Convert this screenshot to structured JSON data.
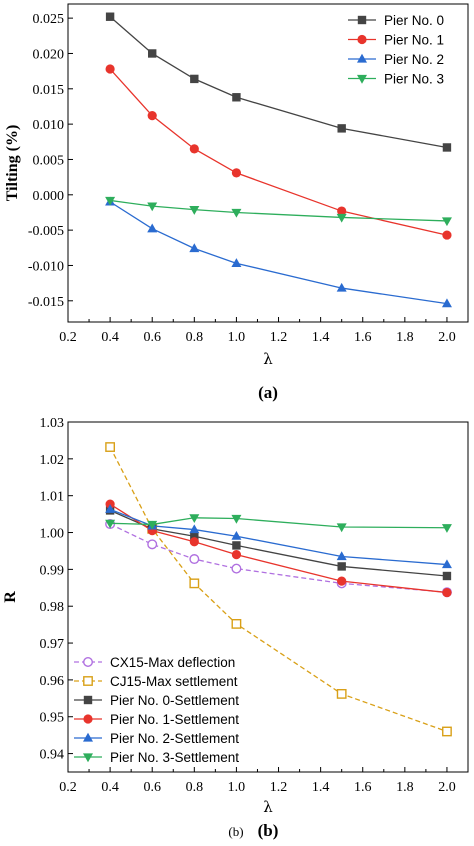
{
  "chart_data": [
    {
      "type": "line",
      "caption": "(a)",
      "xlabel": "λ",
      "ylabel": "Tilting (%)",
      "xlim": [
        0.2,
        2.1
      ],
      "ylim": [
        -0.018,
        0.027
      ],
      "xticks": [
        "0.2",
        "0.4",
        "0.6",
        "0.8",
        "1.0",
        "1.2",
        "1.4",
        "1.6",
        "1.8",
        "2.0"
      ],
      "yticks": [
        "0.025",
        "0.020",
        "0.015",
        "0.010",
        "0.005",
        "0.000",
        "-0.005",
        "-0.010",
        "-0.015"
      ],
      "x": [
        0.4,
        0.6,
        0.8,
        1.0,
        1.5,
        2.0
      ],
      "legend_position": "top-right",
      "series": [
        {
          "name": "Pier No. 0",
          "color": "#444444",
          "marker": "square",
          "values": [
            0.0252,
            0.02,
            0.0164,
            0.0138,
            0.0094,
            0.0067
          ]
        },
        {
          "name": "Pier No. 1",
          "color": "#e8342c",
          "marker": "circle",
          "values": [
            0.0178,
            0.0112,
            0.0065,
            0.0031,
            -0.0023,
            -0.0057
          ]
        },
        {
          "name": "Pier No. 2",
          "color": "#2a6bd0",
          "marker": "triangle-up",
          "values": [
            -0.001,
            -0.0048,
            -0.0076,
            -0.0097,
            -0.0132,
            -0.0154
          ]
        },
        {
          "name": "Pier No. 3",
          "color": "#2eae5c",
          "marker": "triangle-down",
          "values": [
            -0.0008,
            -0.0016,
            -0.0021,
            -0.0025,
            -0.0032,
            -0.0037
          ]
        }
      ]
    },
    {
      "type": "line",
      "caption": "(b)",
      "caption_small": "(b)",
      "xlabel": "λ",
      "ylabel": "R",
      "xlim": [
        0.2,
        2.1
      ],
      "ylim": [
        0.935,
        1.03
      ],
      "xticks": [
        "0.2",
        "0.4",
        "0.6",
        "0.8",
        "1.0",
        "1.2",
        "1.4",
        "1.6",
        "1.8",
        "2.0"
      ],
      "yticks": [
        "1.03",
        "1.02",
        "1.01",
        "1.00",
        "0.99",
        "0.98",
        "0.97",
        "0.96",
        "0.95",
        "0.94"
      ],
      "x": [
        0.4,
        0.6,
        0.8,
        1.0,
        1.5,
        2.0
      ],
      "legend_position": "bottom-left",
      "series": [
        {
          "name": "CX15-Max deflection",
          "color": "#b070e0",
          "marker": "circle-open",
          "dashed": true,
          "values": [
            1.0023,
            0.9968,
            0.9928,
            0.9902,
            0.9862,
            0.9838
          ]
        },
        {
          "name": "CJ15-Max settlement",
          "color": "#d9a017",
          "marker": "square-open",
          "dashed": true,
          "values": [
            1.0232,
            1.001,
            0.9862,
            0.9752,
            0.9562,
            0.946
          ]
        },
        {
          "name": "Pier No. 0-Settlement",
          "color": "#444444",
          "marker": "square",
          "values": [
            1.006,
            1.001,
            0.999,
            0.9965,
            0.9908,
            0.9882
          ]
        },
        {
          "name": "Pier No. 1-Settlement",
          "color": "#e8342c",
          "marker": "circle",
          "values": [
            1.0077,
            1.0005,
            0.9975,
            0.994,
            0.9868,
            0.9837
          ]
        },
        {
          "name": "Pier No. 2-Settlement",
          "color": "#2a6bd0",
          "marker": "triangle-up",
          "values": [
            1.0063,
            1.0018,
            1.0008,
            0.999,
            0.9935,
            0.9913
          ]
        },
        {
          "name": "Pier No. 3-Settlement",
          "color": "#2eae5c",
          "marker": "triangle-down",
          "values": [
            1.0025,
            1.0022,
            1.004,
            1.0038,
            1.0015,
            1.0013
          ]
        }
      ]
    }
  ]
}
